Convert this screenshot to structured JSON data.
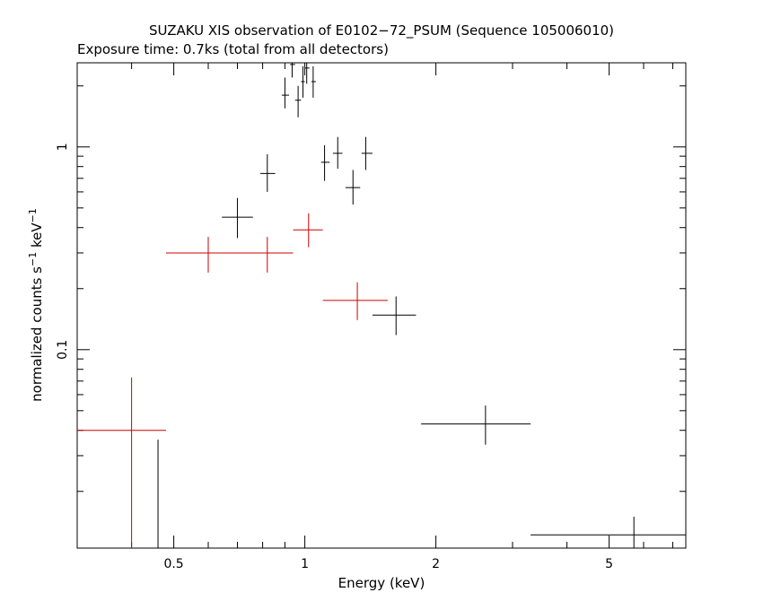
{
  "chart_data": {
    "type": "scatter",
    "title": "SUZAKU XIS observation of E0102−72_PSUM (Sequence 105006010)",
    "subtitle": "Exposure time: 0.7ks (total from all detectors)",
    "xlabel": "Energy (keV)",
    "ylabel_main": "normalized counts s",
    "ylabel_sup1": "−1",
    "ylabel_mid": " keV",
    "ylabel_sup2": "−1",
    "xscale": "log",
    "yscale": "log",
    "xlim": [
      0.3,
      7.5
    ],
    "ylim": [
      0.0105,
      2.6
    ],
    "x_ticks": [
      {
        "value": 0.5,
        "label": "0.5"
      },
      {
        "value": 1,
        "label": "1"
      },
      {
        "value": 2,
        "label": "2"
      },
      {
        "value": 5,
        "label": "5"
      }
    ],
    "y_ticks": [
      {
        "value": 0.1,
        "label": "0.1"
      },
      {
        "value": 1,
        "label": "1"
      }
    ],
    "series": [
      {
        "color": "#000000",
        "points": [
          {
            "x": 0.7,
            "xlo": 0.645,
            "xhi": 0.76,
            "y": 0.45,
            "ylo": 0.355,
            "yhi": 0.56
          },
          {
            "x": 0.82,
            "xlo": 0.79,
            "xhi": 0.855,
            "y": 0.74,
            "ylo": 0.6,
            "yhi": 0.92
          },
          {
            "x": 0.9,
            "xlo": 0.885,
            "xhi": 0.92,
            "y": 1.8,
            "ylo": 1.55,
            "yhi": 2.2
          },
          {
            "x": 0.935,
            "xlo": 0.925,
            "xhi": 0.95,
            "y": 2.55,
            "ylo": 2.2,
            "yhi": 2.6
          },
          {
            "x": 0.965,
            "xlo": 0.95,
            "xhi": 0.98,
            "y": 1.7,
            "ylo": 1.4,
            "yhi": 2.0
          },
          {
            "x": 0.99,
            "xlo": 0.98,
            "xhi": 1.0,
            "y": 2.1,
            "ylo": 1.75,
            "yhi": 2.5
          },
          {
            "x": 1.01,
            "xlo": 1.0,
            "xhi": 1.025,
            "y": 2.45,
            "ylo": 2.05,
            "yhi": 2.6
          },
          {
            "x": 1.045,
            "xlo": 1.035,
            "xhi": 1.06,
            "y": 2.1,
            "ylo": 1.75,
            "yhi": 2.5
          },
          {
            "x": 1.11,
            "xlo": 1.09,
            "xhi": 1.14,
            "y": 0.84,
            "ylo": 0.68,
            "yhi": 1.02
          },
          {
            "x": 1.19,
            "xlo": 1.16,
            "xhi": 1.22,
            "y": 0.93,
            "ylo": 0.78,
            "yhi": 1.12
          },
          {
            "x": 1.29,
            "xlo": 1.24,
            "xhi": 1.34,
            "y": 0.63,
            "ylo": 0.52,
            "yhi": 0.77
          },
          {
            "x": 1.38,
            "xlo": 1.35,
            "xhi": 1.43,
            "y": 0.93,
            "ylo": 0.77,
            "yhi": 1.12
          },
          {
            "x": 1.62,
            "xlo": 1.43,
            "xhi": 1.8,
            "y": 0.148,
            "ylo": 0.118,
            "yhi": 0.183
          },
          {
            "x": 2.6,
            "xlo": 1.85,
            "xhi": 3.3,
            "y": 0.043,
            "ylo": 0.034,
            "yhi": 0.053
          },
          {
            "x": 5.7,
            "xlo": 3.3,
            "xhi": 7.5,
            "y": 0.0122,
            "ylo": 0.0105,
            "yhi": 0.015
          },
          {
            "x": 0.46,
            "xlo": 0.46,
            "xhi": 0.46,
            "y": 0.0105,
            "ylo": 0.0105,
            "yhi": 0.036
          }
        ]
      },
      {
        "color": "#cc0000",
        "points": [
          {
            "x": 0.4,
            "xlo": 0.3,
            "xhi": 0.48,
            "y": 0.04,
            "ylo": 0.0105,
            "yhi": 0.073
          },
          {
            "x": 0.6,
            "xlo": 0.48,
            "xhi": 0.7,
            "y": 0.3,
            "ylo": 0.24,
            "yhi": 0.36
          },
          {
            "x": 0.82,
            "xlo": 0.7,
            "xhi": 0.94,
            "y": 0.3,
            "ylo": 0.24,
            "yhi": 0.36
          },
          {
            "x": 1.02,
            "xlo": 0.94,
            "xhi": 1.1,
            "y": 0.39,
            "ylo": 0.32,
            "yhi": 0.47
          },
          {
            "x": 1.32,
            "xlo": 1.1,
            "xhi": 1.55,
            "y": 0.175,
            "ylo": 0.14,
            "yhi": 0.215
          }
        ]
      }
    ]
  }
}
